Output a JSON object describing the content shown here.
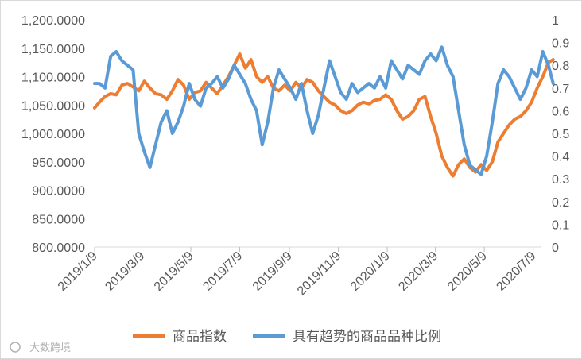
{
  "chart_data": {
    "type": "line",
    "title": "",
    "x_ticks": [
      "2019/1/9",
      "2019/3/9",
      "2019/5/9",
      "2019/7/9",
      "2019/9/9",
      "2019/11/9",
      "2020/1/9",
      "2020/3/9",
      "2020/5/9",
      "2020/7/9"
    ],
    "y_left": {
      "ticks": [
        "800.0000",
        "850.0000",
        "900.0000",
        "950.0000",
        "1,000.0000",
        "1,050.0000",
        "1,100.0000",
        "1,150.0000",
        "1,200.0000"
      ],
      "lim": [
        800,
        1200
      ]
    },
    "y_right": {
      "ticks": [
        "0",
        "0.1",
        "0.2",
        "0.3",
        "0.4",
        "0.5",
        "0.6",
        "0.7",
        "0.8",
        "0.9",
        "1"
      ],
      "lim": [
        0,
        1
      ]
    },
    "grid": false,
    "legend_position": "bottom",
    "series": [
      {
        "name": "商品指数",
        "axis": "left",
        "color": "#ed7d31",
        "points": [
          [
            "2019/1/9",
            1045
          ],
          [
            "2019/1/15",
            1055
          ],
          [
            "2019/1/22",
            1065
          ],
          [
            "2019/1/29",
            1070
          ],
          [
            "2019/2/5",
            1068
          ],
          [
            "2019/2/12",
            1085
          ],
          [
            "2019/2/19",
            1088
          ],
          [
            "2019/2/26",
            1082
          ],
          [
            "2019/3/5",
            1075
          ],
          [
            "2019/3/12",
            1092
          ],
          [
            "2019/3/19",
            1080
          ],
          [
            "2019/3/26",
            1070
          ],
          [
            "2019/4/2",
            1068
          ],
          [
            "2019/4/9",
            1060
          ],
          [
            "2019/4/16",
            1075
          ],
          [
            "2019/4/23",
            1095
          ],
          [
            "2019/4/30",
            1085
          ],
          [
            "2019/5/7",
            1060
          ],
          [
            "2019/5/14",
            1072
          ],
          [
            "2019/5/21",
            1075
          ],
          [
            "2019/5/28",
            1090
          ],
          [
            "2019/6/4",
            1080
          ],
          [
            "2019/6/11",
            1070
          ],
          [
            "2019/6/18",
            1085
          ],
          [
            "2019/6/25",
            1100
          ],
          [
            "2019/7/2",
            1120
          ],
          [
            "2019/7/9",
            1140
          ],
          [
            "2019/7/16",
            1115
          ],
          [
            "2019/7/23",
            1130
          ],
          [
            "2019/7/30",
            1100
          ],
          [
            "2019/8/6",
            1090
          ],
          [
            "2019/8/13",
            1100
          ],
          [
            "2019/8/20",
            1080
          ],
          [
            "2019/8/27",
            1075
          ],
          [
            "2019/9/3",
            1085
          ],
          [
            "2019/9/10",
            1075
          ],
          [
            "2019/9/17",
            1090
          ],
          [
            "2019/9/24",
            1080
          ],
          [
            "2019/10/1",
            1095
          ],
          [
            "2019/10/8",
            1090
          ],
          [
            "2019/10/15",
            1075
          ],
          [
            "2019/10/22",
            1065
          ],
          [
            "2019/10/29",
            1055
          ],
          [
            "2019/11/5",
            1050
          ],
          [
            "2019/11/12",
            1040
          ],
          [
            "2019/11/19",
            1035
          ],
          [
            "2019/11/26",
            1040
          ],
          [
            "2019/12/3",
            1050
          ],
          [
            "2019/12/10",
            1055
          ],
          [
            "2019/12/17",
            1052
          ],
          [
            "2019/12/24",
            1058
          ],
          [
            "2019/12/31",
            1060
          ],
          [
            "2020/1/7",
            1068
          ],
          [
            "2020/1/14",
            1060
          ],
          [
            "2020/1/21",
            1040
          ],
          [
            "2020/1/28",
            1025
          ],
          [
            "2020/2/4",
            1030
          ],
          [
            "2020/2/11",
            1040
          ],
          [
            "2020/2/18",
            1060
          ],
          [
            "2020/2/25",
            1065
          ],
          [
            "2020/3/3",
            1030
          ],
          [
            "2020/3/10",
            1000
          ],
          [
            "2020/3/17",
            960
          ],
          [
            "2020/3/24",
            940
          ],
          [
            "2020/3/31",
            925
          ],
          [
            "2020/4/7",
            945
          ],
          [
            "2020/4/14",
            955
          ],
          [
            "2020/4/21",
            940
          ],
          [
            "2020/4/28",
            932
          ],
          [
            "2020/5/5",
            945
          ],
          [
            "2020/5/12",
            935
          ],
          [
            "2020/5/19",
            950
          ],
          [
            "2020/5/26",
            985
          ],
          [
            "2020/6/2",
            1000
          ],
          [
            "2020/6/9",
            1015
          ],
          [
            "2020/6/16",
            1025
          ],
          [
            "2020/6/23",
            1030
          ],
          [
            "2020/6/30",
            1040
          ],
          [
            "2020/7/7",
            1055
          ],
          [
            "2020/7/14",
            1080
          ],
          [
            "2020/7/21",
            1100
          ],
          [
            "2020/7/28",
            1125
          ],
          [
            "2020/8/3",
            1130
          ]
        ]
      },
      {
        "name": "具有趋势的商品品种比例",
        "axis": "right",
        "color": "#5b9bd5",
        "points": [
          [
            "2019/1/9",
            0.72
          ],
          [
            "2019/1/15",
            0.72
          ],
          [
            "2019/1/22",
            0.7
          ],
          [
            "2019/1/29",
            0.84
          ],
          [
            "2019/2/5",
            0.86
          ],
          [
            "2019/2/12",
            0.82
          ],
          [
            "2019/2/19",
            0.8
          ],
          [
            "2019/2/26",
            0.78
          ],
          [
            "2019/3/5",
            0.5
          ],
          [
            "2019/3/12",
            0.42
          ],
          [
            "2019/3/19",
            0.35
          ],
          [
            "2019/3/26",
            0.45
          ],
          [
            "2019/4/2",
            0.55
          ],
          [
            "2019/4/9",
            0.6
          ],
          [
            "2019/4/16",
            0.5
          ],
          [
            "2019/4/23",
            0.55
          ],
          [
            "2019/4/30",
            0.62
          ],
          [
            "2019/5/7",
            0.72
          ],
          [
            "2019/5/14",
            0.65
          ],
          [
            "2019/5/21",
            0.62
          ],
          [
            "2019/5/28",
            0.7
          ],
          [
            "2019/6/4",
            0.72
          ],
          [
            "2019/6/11",
            0.75
          ],
          [
            "2019/6/18",
            0.7
          ],
          [
            "2019/6/25",
            0.74
          ],
          [
            "2019/7/2",
            0.8
          ],
          [
            "2019/7/9",
            0.76
          ],
          [
            "2019/7/16",
            0.72
          ],
          [
            "2019/7/23",
            0.65
          ],
          [
            "2019/7/30",
            0.6
          ],
          [
            "2019/8/6",
            0.45
          ],
          [
            "2019/8/13",
            0.55
          ],
          [
            "2019/8/20",
            0.7
          ],
          [
            "2019/8/27",
            0.78
          ],
          [
            "2019/9/3",
            0.74
          ],
          [
            "2019/9/10",
            0.7
          ],
          [
            "2019/9/17",
            0.65
          ],
          [
            "2019/9/24",
            0.72
          ],
          [
            "2019/10/1",
            0.6
          ],
          [
            "2019/10/8",
            0.5
          ],
          [
            "2019/10/15",
            0.58
          ],
          [
            "2019/10/22",
            0.7
          ],
          [
            "2019/10/29",
            0.82
          ],
          [
            "2019/11/5",
            0.75
          ],
          [
            "2019/11/12",
            0.68
          ],
          [
            "2019/11/19",
            0.65
          ],
          [
            "2019/11/26",
            0.72
          ],
          [
            "2019/12/3",
            0.68
          ],
          [
            "2019/12/10",
            0.7
          ],
          [
            "2019/12/17",
            0.72
          ],
          [
            "2019/12/24",
            0.7
          ],
          [
            "2019/12/31",
            0.75
          ],
          [
            "2020/1/7",
            0.7
          ],
          [
            "2020/1/14",
            0.82
          ],
          [
            "2020/1/21",
            0.78
          ],
          [
            "2020/1/28",
            0.74
          ],
          [
            "2020/2/4",
            0.8
          ],
          [
            "2020/2/11",
            0.78
          ],
          [
            "2020/2/18",
            0.76
          ],
          [
            "2020/2/25",
            0.82
          ],
          [
            "2020/3/3",
            0.85
          ],
          [
            "2020/3/10",
            0.82
          ],
          [
            "2020/3/17",
            0.88
          ],
          [
            "2020/3/24",
            0.8
          ],
          [
            "2020/3/31",
            0.75
          ],
          [
            "2020/4/7",
            0.6
          ],
          [
            "2020/4/14",
            0.45
          ],
          [
            "2020/4/21",
            0.36
          ],
          [
            "2020/4/28",
            0.34
          ],
          [
            "2020/5/5",
            0.32
          ],
          [
            "2020/5/12",
            0.4
          ],
          [
            "2020/5/19",
            0.55
          ],
          [
            "2020/5/26",
            0.72
          ],
          [
            "2020/6/2",
            0.78
          ],
          [
            "2020/6/9",
            0.75
          ],
          [
            "2020/6/16",
            0.7
          ],
          [
            "2020/6/23",
            0.65
          ],
          [
            "2020/6/30",
            0.7
          ],
          [
            "2020/7/7",
            0.78
          ],
          [
            "2020/7/14",
            0.75
          ],
          [
            "2020/7/21",
            0.86
          ],
          [
            "2020/7/28",
            0.8
          ],
          [
            "2020/8/3",
            0.72
          ]
        ]
      }
    ]
  },
  "watermark": "大数跨境"
}
